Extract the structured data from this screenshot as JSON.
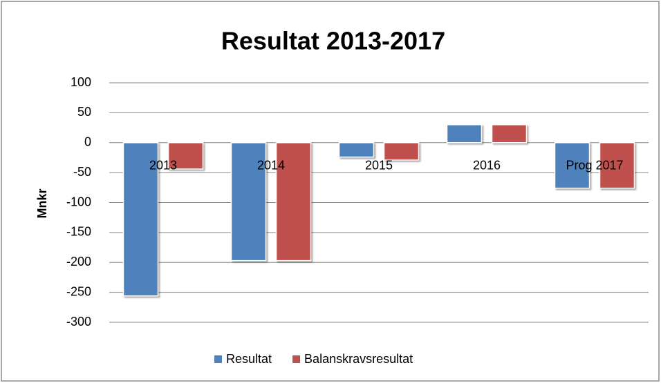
{
  "chart_data": {
    "type": "bar",
    "title": "Resultat 2013-2017",
    "y_label": "Mnkr",
    "categories": [
      "2013",
      "2014",
      "2015",
      "2016",
      "Prog 2017"
    ],
    "series": [
      {
        "name": "Resultat",
        "color": "#4f81bd",
        "values": [
          -256,
          -197,
          -24,
          30,
          -76
        ]
      },
      {
        "name": "Balanskravsresultat",
        "color": "#c0504d",
        "values": [
          -44,
          -197,
          -29,
          30,
          -76
        ]
      }
    ],
    "ylim": [
      -300,
      100
    ],
    "yticks": [
      -300,
      -250,
      -200,
      -150,
      -100,
      -50,
      0,
      50,
      100
    ],
    "grid": true,
    "legend": "bottom"
  }
}
